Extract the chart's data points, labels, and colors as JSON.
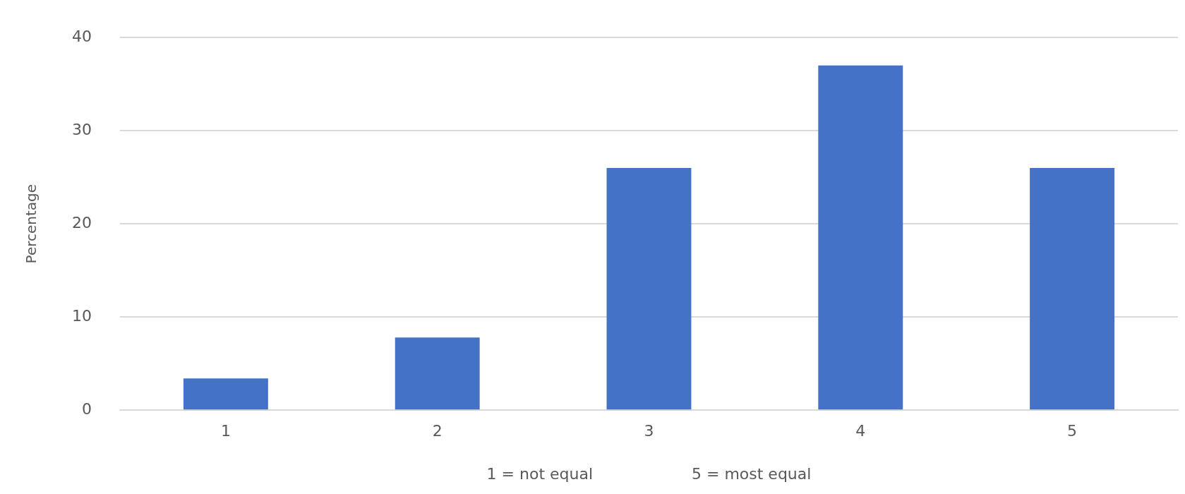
{
  "chart_data": {
    "type": "bar",
    "xlabel": "1 = not equal                    5 = most equal",
    "ylabel": "Percentage",
    "categories": [
      "1",
      "2",
      "3",
      "4",
      "5"
    ],
    "values": [
      3.4,
      7.8,
      26,
      37,
      26
    ],
    "color": "#4472c4",
    "ylim": [
      0,
      40
    ],
    "yticks": [
      0,
      10,
      20,
      30,
      40
    ],
    "grid": "y",
    "legend": false
  }
}
